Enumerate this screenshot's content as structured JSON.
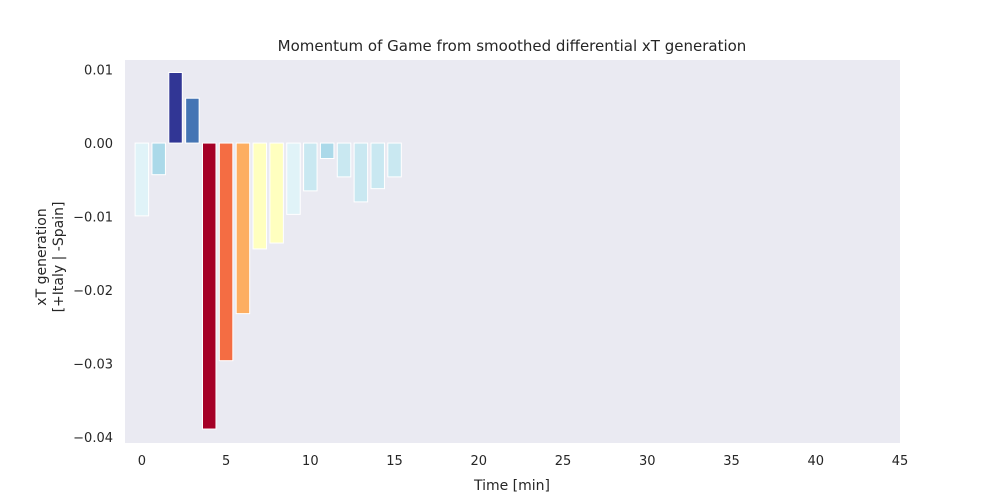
{
  "chart_data": {
    "type": "bar",
    "title": "Momentum of Game from smoothed differential xT generation",
    "xlabel": "Time [min]",
    "ylabel_line1": "xT generation",
    "ylabel_line2": "[+Italy | -Spain]",
    "xlim": [
      -1,
      45
    ],
    "ylim": [
      -0.0408,
      0.0113
    ],
    "xticks": [
      0,
      5,
      10,
      15,
      20,
      25,
      30,
      35,
      40,
      45
    ],
    "yticks": [
      0.01,
      0.0,
      -0.01,
      -0.02,
      -0.03,
      -0.04
    ],
    "ytick_labels": [
      "0.01",
      "0.00",
      "−0.01",
      "−0.02",
      "−0.03",
      "−0.04"
    ],
    "grid": false,
    "x": [
      0,
      1,
      2,
      3,
      4,
      5,
      6,
      7,
      8,
      9,
      10,
      11,
      12,
      13,
      14,
      15
    ],
    "values": [
      -0.0099,
      -0.0043,
      0.0096,
      0.0061,
      -0.0389,
      -0.0296,
      -0.0232,
      -0.0144,
      -0.0136,
      -0.0097,
      -0.0065,
      -0.0021,
      -0.0046,
      -0.008,
      -0.0062,
      -0.0046
    ],
    "colors": [
      "#e0f3f8",
      "#abd9e9",
      "#313695",
      "#4575b4",
      "#a50026",
      "#f46d43",
      "#fdae61",
      "#ffffbf",
      "#ffffbf",
      "#e0f3f8",
      "#c9e8f1",
      "#abd9e9",
      "#c9e8f1",
      "#c9e8f1",
      "#c9e8f1",
      "#c9e8f1"
    ]
  }
}
